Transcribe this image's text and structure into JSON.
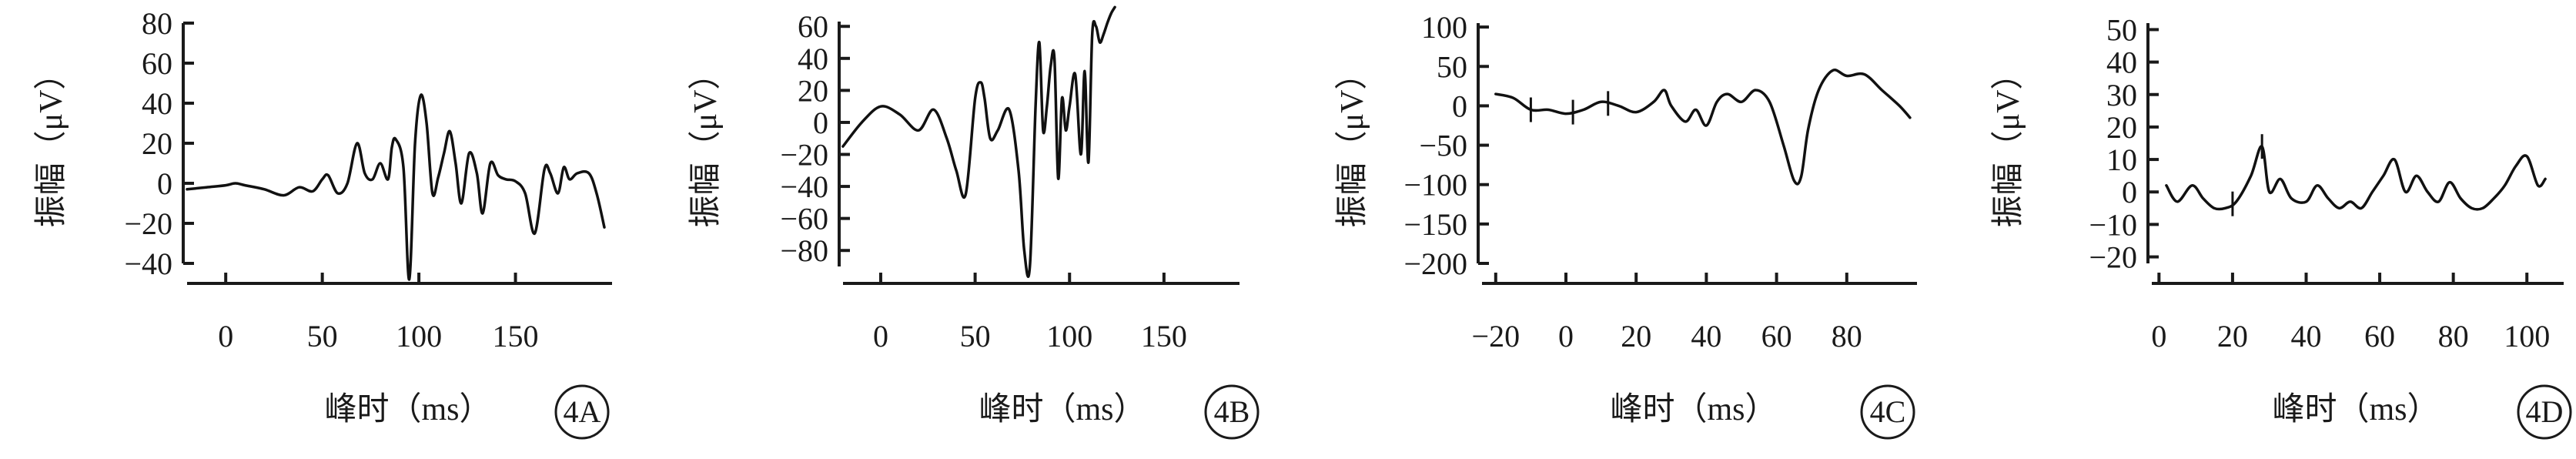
{
  "chart_data": [
    {
      "type": "line",
      "panel_label": "4A",
      "xlabel": "峰时（ms）",
      "ylabel": "振幅（μV）",
      "xlim": [
        -22,
        200
      ],
      "ylim": [
        -40,
        80
      ],
      "xticks": [
        0,
        50,
        100,
        150
      ],
      "yticks": [
        80,
        60,
        40,
        20,
        0,
        -20,
        -40
      ],
      "series": [
        {
          "x": [
            -20,
            -10,
            0,
            5,
            10,
            20,
            30,
            38,
            45,
            50,
            53,
            58,
            63,
            68,
            72,
            76,
            80,
            84,
            86,
            88,
            92,
            95,
            98,
            101,
            104,
            107,
            110,
            113,
            116,
            119,
            122,
            126,
            130,
            133,
            137,
            141,
            145,
            150,
            155,
            160,
            165,
            168,
            172,
            175,
            178,
            182,
            188,
            192,
            196
          ],
          "y": [
            -3,
            -2,
            -1,
            0,
            -1,
            -3,
            -6,
            -2,
            -4,
            2,
            4,
            -5,
            0,
            20,
            5,
            2,
            10,
            2,
            18,
            22,
            8,
            -48,
            20,
            44,
            30,
            -5,
            3,
            15,
            26,
            10,
            -10,
            15,
            5,
            -15,
            10,
            4,
            2,
            1,
            -5,
            -25,
            7,
            5,
            -5,
            8,
            2,
            5,
            5,
            -5,
            -22
          ]
        }
      ]
    },
    {
      "type": "line",
      "panel_label": "4B",
      "xlabel": "峰时（ms）",
      "ylabel": "振幅（μV）",
      "xlim": [
        -22,
        190
      ],
      "ylim": [
        -90,
        63
      ],
      "xticks": [
        0,
        50,
        100,
        150
      ],
      "yticks": [
        60,
        40,
        20,
        0,
        -20,
        -40,
        -60,
        -80
      ],
      "series": [
        {
          "x": [
            -20,
            -10,
            0,
            10,
            20,
            28,
            35,
            40,
            45,
            50,
            53,
            55,
            58,
            62,
            68,
            73,
            76,
            79,
            82,
            84,
            86,
            88,
            90,
            92,
            94,
            96,
            98,
            100,
            103,
            106,
            108,
            110,
            112,
            114,
            116,
            118,
            120,
            122,
            124
          ],
          "y": [
            -15,
            0,
            10,
            5,
            -5,
            8,
            -10,
            -30,
            -45,
            15,
            25,
            15,
            -10,
            -5,
            8,
            -30,
            -80,
            -90,
            10,
            50,
            -5,
            10,
            35,
            40,
            -35,
            15,
            -5,
            10,
            30,
            -20,
            32,
            -25,
            55,
            60,
            50,
            55,
            62,
            68,
            72
          ]
        }
      ]
    },
    {
      "type": "line",
      "panel_label": "4C",
      "xlabel": "峰时（ms）",
      "ylabel": "振幅（μV）",
      "xlim": [
        -25,
        100
      ],
      "ylim": [
        -200,
        105
      ],
      "xticks": [
        -20,
        0,
        20,
        40,
        60,
        80
      ],
      "yticks": [
        100,
        50,
        0,
        -50,
        -100,
        -150,
        -200
      ],
      "series": [
        {
          "x": [
            -20,
            -15,
            -10,
            -5,
            0,
            5,
            10,
            15,
            20,
            25,
            28,
            30,
            34,
            37,
            40,
            43,
            46,
            50,
            54,
            58,
            62,
            65,
            67,
            69,
            72,
            76,
            80,
            85,
            90,
            95,
            98
          ],
          "y": [
            15,
            10,
            -5,
            -5,
            -10,
            -5,
            5,
            0,
            -8,
            5,
            20,
            0,
            -20,
            -5,
            -25,
            5,
            15,
            5,
            20,
            5,
            -50,
            -95,
            -90,
            -30,
            20,
            45,
            38,
            40,
            20,
            0,
            -15
          ]
        }
      ],
      "markers_x": [
        -10,
        2,
        12
      ]
    },
    {
      "type": "line",
      "panel_label": "4D",
      "xlabel": "峰时（ms）",
      "ylabel": "振幅（μV）",
      "xlim": [
        -3,
        110
      ],
      "ylim": [
        -22,
        52
      ],
      "xticks": [
        0,
        20,
        40,
        60,
        80,
        100
      ],
      "yticks": [
        50,
        40,
        30,
        20,
        10,
        0,
        -10,
        -20
      ],
      "series": [
        {
          "x": [
            2,
            5,
            9,
            12,
            15,
            18,
            21,
            25,
            28,
            30,
            33,
            36,
            40,
            43,
            46,
            49,
            52,
            55,
            58,
            61,
            64,
            67,
            70,
            73,
            76,
            79,
            82,
            85,
            88,
            91,
            94,
            97,
            100,
            103,
            105
          ],
          "y": [
            2,
            -3,
            2,
            -2,
            -5,
            -5,
            -3,
            5,
            14,
            0,
            4,
            -2,
            -3,
            2,
            -2,
            -5,
            -3,
            -5,
            0,
            5,
            10,
            0,
            5,
            0,
            -3,
            3,
            -2,
            -5,
            -5,
            -2,
            2,
            8,
            11,
            2,
            4
          ]
        }
      ],
      "markers_x": [
        20,
        28
      ]
    }
  ]
}
